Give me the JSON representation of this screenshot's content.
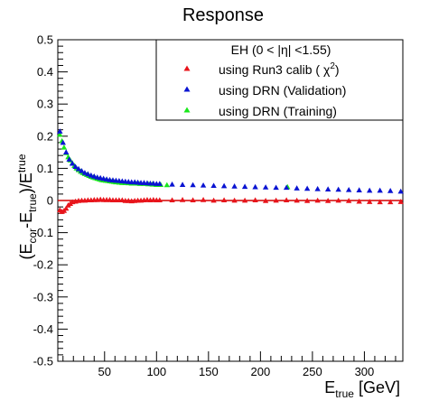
{
  "chart_data": {
    "type": "scatter",
    "title": "Response",
    "xlabel": {
      "base": "E",
      "sub": "true",
      "suffix": " [GeV]"
    },
    "ylabel": {
      "parts": [
        "(E",
        "cor",
        "-E",
        "true",
        ")/E",
        "true"
      ]
    },
    "xlim": [
      5,
      337
    ],
    "ylim": [
      -0.5,
      0.5
    ],
    "xticks": [
      50,
      100,
      150,
      200,
      250,
      300
    ],
    "yticks": [
      -0.5,
      -0.4,
      -0.3,
      -0.2,
      -0.1,
      0,
      0.1,
      0.2,
      0.3,
      0.4,
      0.5
    ],
    "grid": false,
    "legend": {
      "position": "top-right",
      "title": "EH (0 < |η| <1.55)",
      "entries": [
        {
          "label_prefix": "using Run3 calib ( ",
          "label_symbol": "χ",
          "label_sup": "2",
          "label_suffix": ")",
          "series": 0
        },
        {
          "label": "using DRN (Validation)",
          "series": 1
        },
        {
          "label": "using DRN (Training)",
          "series": 2
        }
      ]
    },
    "reference_line": {
      "y": 0,
      "color": "#d40000"
    },
    "series": [
      {
        "name": "using Run3 calib (χ2)",
        "color": "#e8141b",
        "points": [
          [
            7,
            -0.03
          ],
          [
            9,
            -0.035
          ],
          [
            11,
            -0.032
          ],
          [
            13,
            -0.025
          ],
          [
            15,
            -0.015
          ],
          [
            17,
            -0.01
          ],
          [
            19,
            -0.005
          ],
          [
            22,
            -0.003
          ],
          [
            25,
            -0.001
          ],
          [
            28,
            0
          ],
          [
            31,
            0
          ],
          [
            34,
            0.001
          ],
          [
            37,
            0.001
          ],
          [
            40,
            0.002
          ],
          [
            43,
            0.002
          ],
          [
            46,
            0.003
          ],
          [
            49,
            0.002
          ],
          [
            52,
            0.002
          ],
          [
            55,
            0.002
          ],
          [
            58,
            0.001
          ],
          [
            61,
            0.001
          ],
          [
            64,
            0.001
          ],
          [
            67,
            0.001
          ],
          [
            70,
            -0.001
          ],
          [
            73,
            -0.001
          ],
          [
            76,
            -0.002
          ],
          [
            79,
            -0.001
          ],
          [
            82,
            0
          ],
          [
            85,
            0
          ],
          [
            88,
            0.001
          ],
          [
            91,
            0.002
          ],
          [
            94,
            0.001
          ],
          [
            97,
            0.002
          ],
          [
            100,
            0.001
          ],
          [
            103,
            0.001
          ],
          [
            115,
            0.001
          ],
          [
            125,
            0.002
          ],
          [
            135,
            0.001
          ],
          [
            145,
            0.002
          ],
          [
            155,
            0
          ],
          [
            165,
            0.001
          ],
          [
            175,
            0
          ],
          [
            185,
            0
          ],
          [
            195,
            0.001
          ],
          [
            205,
            -0.001
          ],
          [
            215,
            0
          ],
          [
            225,
            0.001
          ],
          [
            235,
            0
          ],
          [
            245,
            -0.001
          ],
          [
            255,
            0
          ],
          [
            265,
            -0.001
          ],
          [
            275,
            0
          ],
          [
            285,
            -0.001
          ],
          [
            295,
            -0.003
          ],
          [
            305,
            -0.004
          ],
          [
            315,
            -0.005
          ],
          [
            325,
            -0.005
          ],
          [
            335,
            -0.004
          ]
        ]
      },
      {
        "name": "using DRN (Validation)",
        "color": "#0a14d2",
        "points": [
          [
            7,
            0.215
          ],
          [
            10,
            0.18
          ],
          [
            13,
            0.15
          ],
          [
            16,
            0.128
          ],
          [
            19,
            0.115
          ],
          [
            22,
            0.105
          ],
          [
            25,
            0.098
          ],
          [
            28,
            0.092
          ],
          [
            31,
            0.086
          ],
          [
            34,
            0.082
          ],
          [
            37,
            0.078
          ],
          [
            40,
            0.075
          ],
          [
            43,
            0.072
          ],
          [
            46,
            0.07
          ],
          [
            49,
            0.068
          ],
          [
            52,
            0.066
          ],
          [
            55,
            0.064
          ],
          [
            58,
            0.063
          ],
          [
            61,
            0.062
          ],
          [
            64,
            0.061
          ],
          [
            67,
            0.06
          ],
          [
            70,
            0.059
          ],
          [
            73,
            0.058
          ],
          [
            76,
            0.057
          ],
          [
            79,
            0.057
          ],
          [
            82,
            0.056
          ],
          [
            85,
            0.055
          ],
          [
            88,
            0.055
          ],
          [
            91,
            0.054
          ],
          [
            94,
            0.053
          ],
          [
            97,
            0.053
          ],
          [
            100,
            0.052
          ],
          [
            103,
            0.052
          ],
          [
            115,
            0.05
          ],
          [
            125,
            0.049
          ],
          [
            135,
            0.048
          ],
          [
            145,
            0.047
          ],
          [
            155,
            0.046
          ],
          [
            165,
            0.045
          ],
          [
            175,
            0.044
          ],
          [
            185,
            0.043
          ],
          [
            195,
            0.042
          ],
          [
            205,
            0.041
          ],
          [
            215,
            0.04
          ],
          [
            225,
            0.04
          ],
          [
            235,
            0.038
          ],
          [
            245,
            0.037
          ],
          [
            255,
            0.036
          ],
          [
            265,
            0.035
          ],
          [
            275,
            0.034
          ],
          [
            285,
            0.033
          ],
          [
            295,
            0.032
          ],
          [
            305,
            0.031
          ],
          [
            315,
            0.031
          ],
          [
            325,
            0.03
          ],
          [
            335,
            0.028
          ]
        ]
      },
      {
        "name": "using DRN (Training)",
        "color": "#19e81b",
        "points": [
          [
            7,
            0.205
          ],
          [
            9,
            0.185
          ],
          [
            11,
            0.165
          ],
          [
            13,
            0.148
          ],
          [
            15,
            0.135
          ],
          [
            17,
            0.125
          ],
          [
            19,
            0.116
          ],
          [
            21,
            0.108
          ],
          [
            23,
            0.1
          ],
          [
            25,
            0.095
          ],
          [
            27,
            0.09
          ],
          [
            29,
            0.086
          ],
          [
            31,
            0.083
          ],
          [
            33,
            0.08
          ],
          [
            35,
            0.077
          ],
          [
            37,
            0.074
          ],
          [
            39,
            0.072
          ],
          [
            41,
            0.07
          ],
          [
            43,
            0.068
          ],
          [
            45,
            0.066
          ],
          [
            47,
            0.064
          ],
          [
            49,
            0.063
          ],
          [
            51,
            0.062
          ],
          [
            53,
            0.061
          ],
          [
            55,
            0.06
          ],
          [
            57,
            0.059
          ],
          [
            59,
            0.058
          ],
          [
            61,
            0.057
          ],
          [
            64,
            0.056
          ],
          [
            67,
            0.055
          ],
          [
            70,
            0.055
          ],
          [
            73,
            0.054
          ],
          [
            76,
            0.053
          ],
          [
            80,
            0.053
          ],
          [
            84,
            0.052
          ],
          [
            88,
            0.052
          ],
          [
            92,
            0.051
          ],
          [
            96,
            0.05
          ],
          [
            100,
            0.049
          ],
          [
            104,
            0.049
          ],
          [
            110,
            0.048
          ],
          [
            226,
            0.042
          ]
        ]
      }
    ]
  }
}
